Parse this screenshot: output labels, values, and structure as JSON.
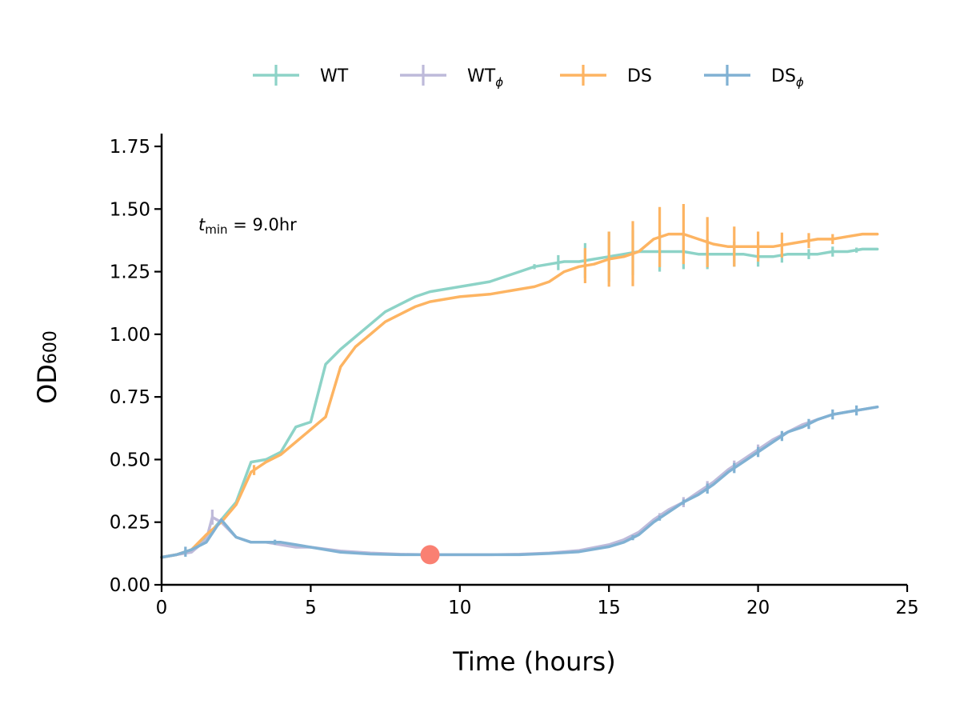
{
  "chart_data": {
    "type": "line",
    "xlabel": "Time (hours)",
    "ylabel_main": "OD",
    "ylabel_sub": "600",
    "xlim": [
      0,
      25
    ],
    "ylim": [
      0,
      1.8
    ],
    "xticks": [
      0,
      5,
      10,
      15,
      20,
      25
    ],
    "xtick_labels": [
      "0",
      "5",
      "10",
      "15",
      "20",
      "25"
    ],
    "yticks": [
      0,
      0.25,
      0.5,
      0.75,
      1.0,
      1.25,
      1.5,
      1.75
    ],
    "ytick_labels": [
      "0.00",
      "0.25",
      "0.50",
      "0.75",
      "1.00",
      "1.25",
      "1.50",
      "1.75"
    ],
    "legend_position": "top-center",
    "grid": false,
    "annotation": {
      "var": "t",
      "sub": "min",
      "rest": " = 9.0hr"
    },
    "marker": {
      "x": 9.0,
      "y": 0.12,
      "color": "#fa8072"
    },
    "series": [
      {
        "name": "WT",
        "name_sub": "",
        "color": "#8dd3c7",
        "x": [
          0,
          0.5,
          1.0,
          1.5,
          2.0,
          2.5,
          3.0,
          3.5,
          4.0,
          4.5,
          5.0,
          5.5,
          6.0,
          6.5,
          7.0,
          7.5,
          8.0,
          8.5,
          9.0,
          10.0,
          11.0,
          12.0,
          12.5,
          13.0,
          13.5,
          14.0,
          14.5,
          15.0,
          15.5,
          16.0,
          16.5,
          17.0,
          17.5,
          18.0,
          18.5,
          19.0,
          19.5,
          20.0,
          20.5,
          21.0,
          21.5,
          22.0,
          22.5,
          23.0,
          23.5,
          24.0
        ],
        "y": [
          0.11,
          0.12,
          0.14,
          0.19,
          0.26,
          0.33,
          0.49,
          0.5,
          0.53,
          0.63,
          0.65,
          0.88,
          0.94,
          0.99,
          1.04,
          1.09,
          1.12,
          1.15,
          1.17,
          1.19,
          1.21,
          1.25,
          1.27,
          1.28,
          1.29,
          1.29,
          1.3,
          1.31,
          1.32,
          1.33,
          1.33,
          1.33,
          1.33,
          1.32,
          1.32,
          1.32,
          1.32,
          1.31,
          1.31,
          1.32,
          1.32,
          1.32,
          1.33,
          1.33,
          1.34,
          1.34
        ],
        "errors": [
          {
            "x": 12.5,
            "e": 0.01
          },
          {
            "x": 13.3,
            "e": 0.03
          },
          {
            "x": 14.2,
            "e": 0.07
          },
          {
            "x": 15.0,
            "e": 0.1
          },
          {
            "x": 15.8,
            "e": 0.09
          },
          {
            "x": 16.7,
            "e": 0.08
          },
          {
            "x": 17.5,
            "e": 0.07
          },
          {
            "x": 18.3,
            "e": 0.06
          },
          {
            "x": 19.2,
            "e": 0.05
          },
          {
            "x": 20.0,
            "e": 0.04
          },
          {
            "x": 20.8,
            "e": 0.03
          },
          {
            "x": 21.7,
            "e": 0.02
          },
          {
            "x": 22.5,
            "e": 0.02
          },
          {
            "x": 23.3,
            "e": 0.01
          }
        ]
      },
      {
        "name": "WT",
        "name_sub": "ϕ",
        "color": "#bebada",
        "x": [
          0,
          0.5,
          1.0,
          1.5,
          1.7,
          2.0,
          2.5,
          3.0,
          3.5,
          4.0,
          4.5,
          5.0,
          6.0,
          7.0,
          8.0,
          9.0,
          10.0,
          11.0,
          12.0,
          13.0,
          14.0,
          15.0,
          15.5,
          16.0,
          16.5,
          17.0,
          17.5,
          18.0,
          18.5,
          19.0,
          19.5,
          20.0,
          20.5,
          21.0,
          21.5,
          22.0,
          22.5,
          23.0,
          23.5,
          24.0
        ],
        "y": [
          0.11,
          0.12,
          0.13,
          0.18,
          0.27,
          0.25,
          0.19,
          0.17,
          0.17,
          0.16,
          0.15,
          0.15,
          0.135,
          0.127,
          0.122,
          0.12,
          0.12,
          0.12,
          0.122,
          0.127,
          0.137,
          0.16,
          0.18,
          0.21,
          0.26,
          0.3,
          0.33,
          0.37,
          0.41,
          0.46,
          0.5,
          0.54,
          0.58,
          0.61,
          0.64,
          0.66,
          0.68,
          0.69,
          0.7,
          0.71
        ],
        "errors": [
          {
            "x": 1.7,
            "e": 0.03
          },
          {
            "x": 16.7,
            "e": 0.01
          },
          {
            "x": 17.5,
            "e": 0.02
          },
          {
            "x": 18.3,
            "e": 0.02
          },
          {
            "x": 19.2,
            "e": 0.02
          },
          {
            "x": 20.0,
            "e": 0.02
          },
          {
            "x": 20.8,
            "e": 0.01
          }
        ]
      },
      {
        "name": "DS",
        "name_sub": "",
        "color": "#fdb462",
        "x": [
          0,
          0.5,
          1.0,
          1.5,
          2.0,
          2.5,
          3.0,
          3.5,
          4.0,
          4.5,
          5.0,
          5.5,
          6.0,
          6.5,
          7.0,
          7.5,
          8.0,
          8.5,
          9.0,
          10.0,
          11.0,
          12.0,
          12.5,
          13.0,
          13.5,
          14.0,
          14.5,
          15.0,
          15.5,
          16.0,
          16.5,
          17.0,
          17.5,
          18.0,
          18.5,
          19.0,
          19.5,
          20.0,
          20.5,
          21.0,
          21.5,
          22.0,
          22.5,
          23.0,
          23.5,
          24.0
        ],
        "y": [
          0.11,
          0.12,
          0.14,
          0.2,
          0.25,
          0.32,
          0.45,
          0.49,
          0.52,
          0.57,
          0.62,
          0.67,
          0.87,
          0.95,
          1.0,
          1.05,
          1.08,
          1.11,
          1.13,
          1.15,
          1.16,
          1.18,
          1.19,
          1.21,
          1.25,
          1.27,
          1.28,
          1.3,
          1.31,
          1.33,
          1.38,
          1.4,
          1.4,
          1.38,
          1.36,
          1.35,
          1.35,
          1.35,
          1.35,
          1.36,
          1.37,
          1.38,
          1.38,
          1.39,
          1.4,
          1.4
        ],
        "errors": [
          {
            "x": 3.1,
            "e": 0.02
          },
          {
            "x": 14.2,
            "e": 0.07
          },
          {
            "x": 15.0,
            "e": 0.11
          },
          {
            "x": 15.8,
            "e": 0.13
          },
          {
            "x": 16.7,
            "e": 0.12
          },
          {
            "x": 17.5,
            "e": 0.12
          },
          {
            "x": 18.3,
            "e": 0.1
          },
          {
            "x": 19.2,
            "e": 0.08
          },
          {
            "x": 20.0,
            "e": 0.06
          },
          {
            "x": 20.8,
            "e": 0.05
          },
          {
            "x": 21.7,
            "e": 0.03
          },
          {
            "x": 22.5,
            "e": 0.02
          }
        ]
      },
      {
        "name": "DS",
        "name_sub": "ϕ",
        "color": "#80b1d3",
        "x": [
          0,
          0.5,
          1.0,
          1.5,
          2.0,
          2.5,
          3.0,
          3.5,
          4.0,
          4.5,
          5.0,
          6.0,
          7.0,
          8.0,
          9.0,
          10.0,
          11.0,
          12.0,
          13.0,
          14.0,
          15.0,
          15.5,
          16.0,
          16.5,
          17.0,
          17.5,
          18.0,
          18.5,
          19.0,
          19.5,
          20.0,
          20.5,
          21.0,
          21.5,
          22.0,
          22.5,
          23.0,
          23.5,
          24.0
        ],
        "y": [
          0.11,
          0.12,
          0.14,
          0.17,
          0.26,
          0.19,
          0.17,
          0.17,
          0.17,
          0.16,
          0.15,
          0.13,
          0.123,
          0.12,
          0.12,
          0.12,
          0.12,
          0.12,
          0.125,
          0.132,
          0.152,
          0.17,
          0.2,
          0.25,
          0.29,
          0.33,
          0.36,
          0.4,
          0.45,
          0.49,
          0.53,
          0.57,
          0.61,
          0.63,
          0.66,
          0.68,
          0.69,
          0.7,
          0.71
        ],
        "errors": [
          {
            "x": 0.8,
            "e": 0.02
          },
          {
            "x": 3.8,
            "e": 0.01
          },
          {
            "x": 15.8,
            "e": 0.01
          },
          {
            "x": 16.7,
            "e": 0.01
          },
          {
            "x": 17.5,
            "e": 0.01
          },
          {
            "x": 18.3,
            "e": 0.02
          },
          {
            "x": 19.2,
            "e": 0.02
          },
          {
            "x": 20.0,
            "e": 0.02
          },
          {
            "x": 20.8,
            "e": 0.02
          },
          {
            "x": 21.7,
            "e": 0.02
          },
          {
            "x": 22.5,
            "e": 0.02
          },
          {
            "x": 23.3,
            "e": 0.02
          }
        ]
      }
    ]
  }
}
